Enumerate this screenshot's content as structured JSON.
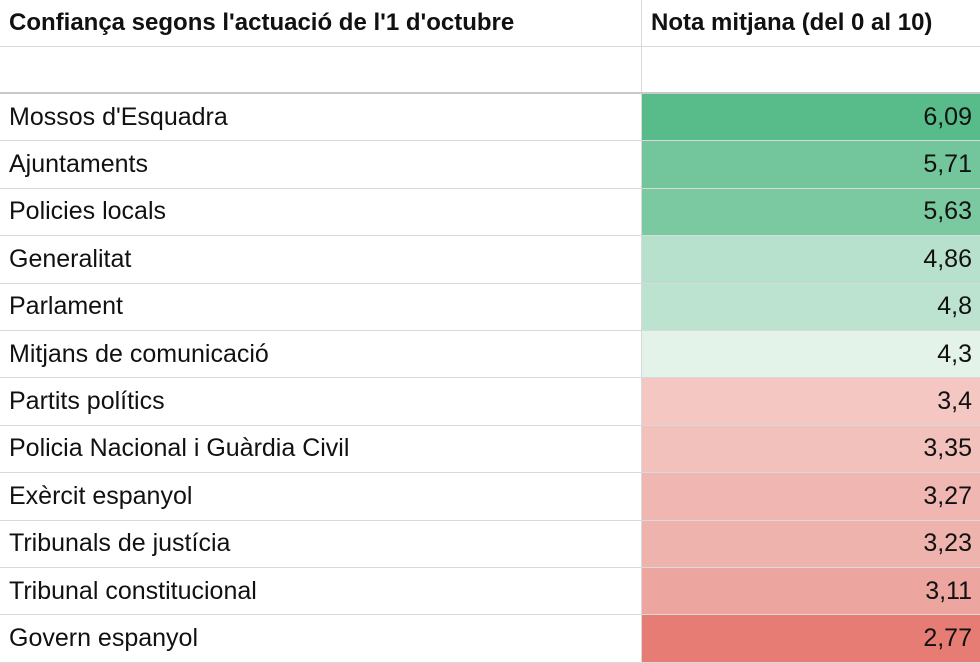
{
  "chart_data": {
    "type": "table",
    "columns": [
      "Confiança segons l'actuació de l'1 d'octubre",
      "Nota mitjana (del 0 al 10)"
    ],
    "rows": [
      {
        "label": "Mossos d'Esquadra",
        "value": 6.09,
        "display": "6,09",
        "color": "#57bb8a"
      },
      {
        "label": "Ajuntaments",
        "value": 5.71,
        "display": "5,71",
        "color": "#73c69c"
      },
      {
        "label": "Policies locals",
        "value": 5.63,
        "display": "5,63",
        "color": "#7ac9a1"
      },
      {
        "label": "Generalitat",
        "value": 4.86,
        "display": "4,86",
        "color": "#b7e1cd"
      },
      {
        "label": "Parlament",
        "value": 4.8,
        "display": "4,8",
        "color": "#bce3d0"
      },
      {
        "label": "Mitjans de comunicació",
        "value": 4.3,
        "display": "4,3",
        "color": "#e3f3ea"
      },
      {
        "label": "Partits polítics",
        "value": 3.4,
        "display": "3,4",
        "color": "#f4c7c3"
      },
      {
        "label": "Policia Nacional i Guàrdia Civil",
        "value": 3.35,
        "display": "3,35",
        "color": "#f2c1bc"
      },
      {
        "label": "Exèrcit espanyol",
        "value": 3.27,
        "display": "3,27",
        "color": "#f0b7b2"
      },
      {
        "label": "Tribunals de justícia",
        "value": 3.23,
        "display": "3,23",
        "color": "#efb3ad"
      },
      {
        "label": "Tribunal constitucional",
        "value": 3.11,
        "display": "3,11",
        "color": "#eca69f"
      },
      {
        "label": "Govern espanyol",
        "value": 2.77,
        "display": "2,77",
        "color": "#e67c73"
      }
    ]
  }
}
